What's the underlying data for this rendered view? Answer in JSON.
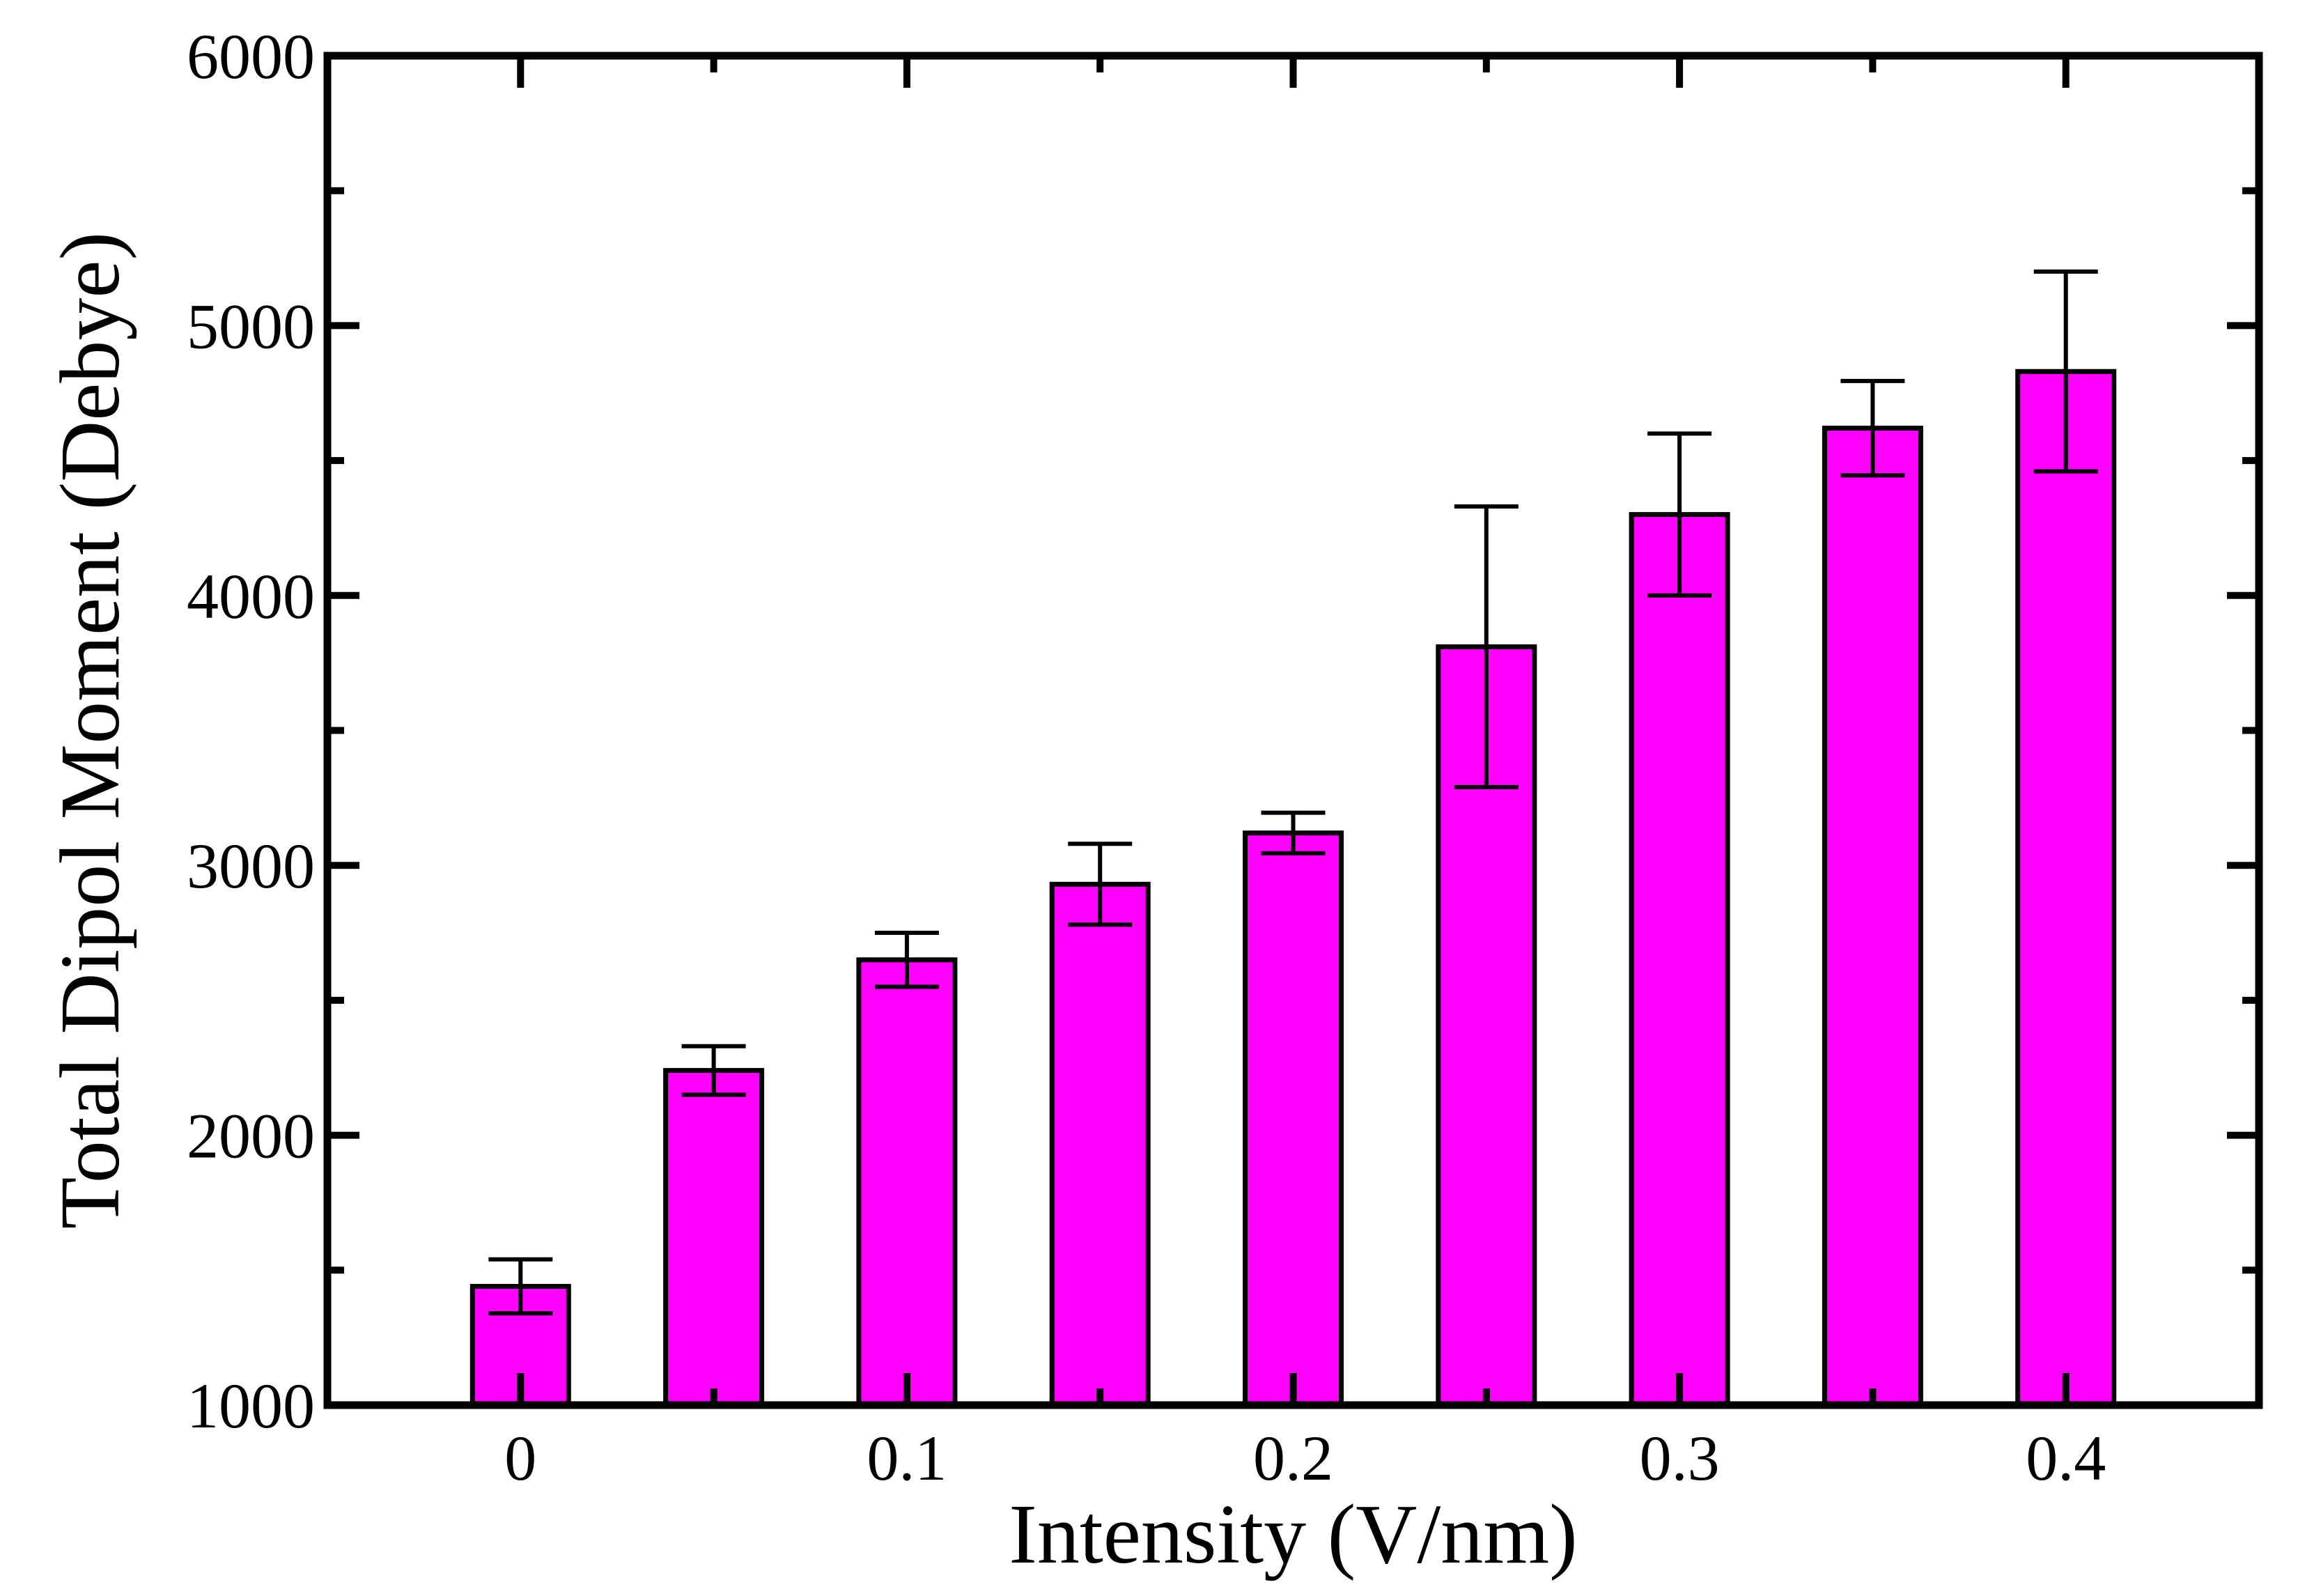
{
  "chart_data": {
    "type": "bar",
    "title": "",
    "xlabel": "Intensity (V/nm)",
    "ylabel": "Total Dipol Moment (Debye)",
    "x": [
      0,
      0.05,
      0.1,
      0.15,
      0.2,
      0.25,
      0.3,
      0.35,
      0.4
    ],
    "values": [
      1440,
      2240,
      2650,
      2930,
      3120,
      3810,
      4300,
      4620,
      4830
    ],
    "errors": [
      100,
      90,
      100,
      150,
      75,
      520,
      300,
      175,
      370
    ],
    "xlim": [
      -0.05,
      0.45
    ],
    "ylim": [
      1000,
      6000
    ],
    "xticks": [
      0,
      0.1,
      0.2,
      0.3,
      0.4
    ],
    "xtick_labels": [
      "0",
      "0.1",
      "0.2",
      "0.3",
      "0.4"
    ],
    "yticks": [
      1000,
      2000,
      3000,
      4000,
      5000,
      6000
    ],
    "ytick_labels": [
      "1000",
      "2000",
      "3000",
      "4000",
      "5000",
      "6000"
    ],
    "bar_color": "#ff00ff",
    "edge_color": "#000000",
    "grid": false
  }
}
